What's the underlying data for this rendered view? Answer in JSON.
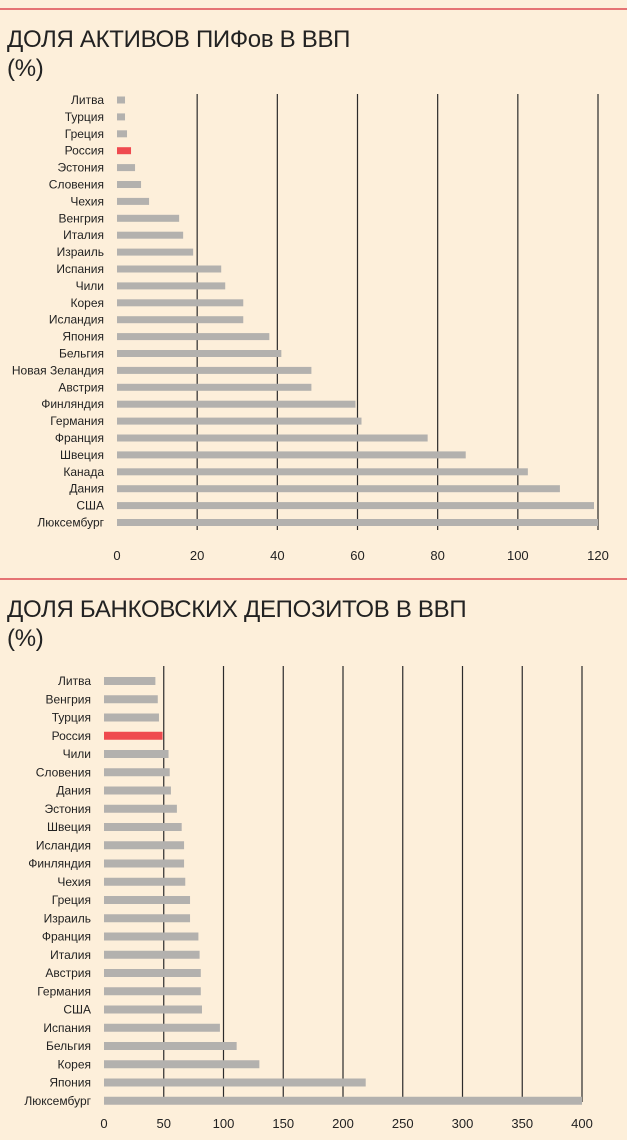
{
  "colors": {
    "bar": "#b3b1ae",
    "highlight": "#ef4a4f",
    "grid": "#2b2b2b",
    "rule": "#e57373",
    "background": "#fdefda"
  },
  "chart_data": [
    {
      "type": "bar",
      "orientation": "horizontal",
      "title": "ДОЛЯ АКТИВОВ ПИФов В ВВП",
      "subtitle": "(%)",
      "highlight": "Россия",
      "categories": [
        "Литва",
        "Турция",
        "Греция",
        "Россия",
        "Эстония",
        "Словения",
        "Чехия",
        "Венгрия",
        "Италия",
        "Израиль",
        "Испания",
        "Чили",
        "Корея",
        "Исландия",
        "Япония",
        "Бельгия",
        "Новая Зеландия",
        "Австрия",
        "Финляндия",
        "Германия",
        "Франция",
        "Швеция",
        "Канада",
        "Дания",
        "США",
        "Люксембург"
      ],
      "values": [
        2,
        2,
        2.5,
        3.5,
        4.5,
        6,
        8,
        15.5,
        16.5,
        19,
        26,
        27,
        31.5,
        31.5,
        38,
        41,
        48.5,
        48.5,
        59.5,
        61,
        77.5,
        87,
        102.5,
        110.5,
        119,
        120
      ],
      "xlim": [
        0,
        120
      ],
      "xticks": [
        0,
        20,
        40,
        60,
        80,
        100,
        120
      ],
      "grid": true
    },
    {
      "type": "bar",
      "orientation": "horizontal",
      "title": "ДОЛЯ БАНКОВСКИХ ДЕПОЗИТОВ В ВВП",
      "subtitle": "(%)",
      "highlight": "Россия",
      "categories": [
        "Литва",
        "Венгрия",
        "Турция",
        "Россия",
        "Чили",
        "Словения",
        "Дания",
        "Эстония",
        "Швеция",
        "Исландия",
        "Финляндия",
        "Чехия",
        "Греция",
        "Израиль",
        "Франция",
        "Италия",
        "Австрия",
        "Германия",
        "США",
        "Испания",
        "Бельгия",
        "Корея",
        "Япония",
        "Люксембург"
      ],
      "values": [
        43,
        45,
        46,
        49,
        54,
        55,
        56,
        61,
        65,
        67,
        67,
        68,
        72,
        72,
        79,
        80,
        81,
        81,
        82,
        97,
        111,
        130,
        219,
        400
      ],
      "xlim": [
        0,
        400
      ],
      "xticks": [
        0,
        50,
        100,
        150,
        200,
        250,
        300,
        350,
        400
      ],
      "grid": true
    }
  ]
}
